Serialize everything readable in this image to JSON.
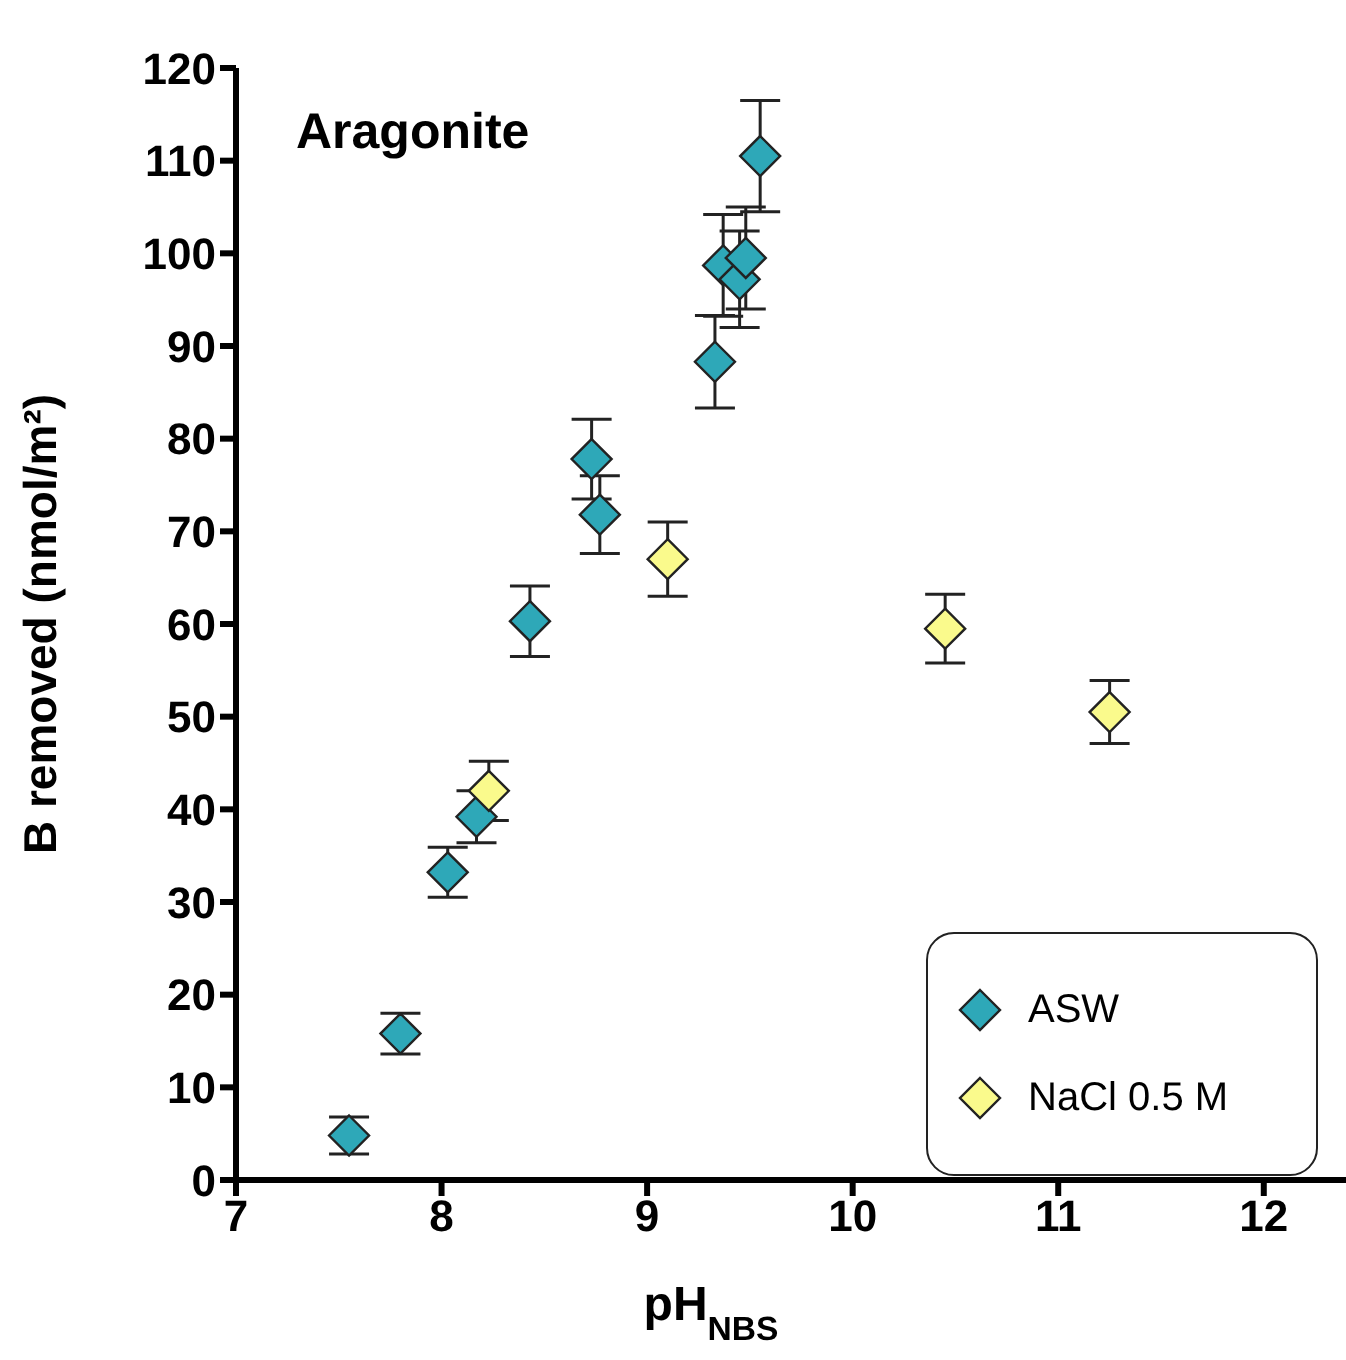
{
  "chart_data": {
    "type": "scatter",
    "title": "Aragonite",
    "xlabel": "pH$_{NBS}$",
    "ylabel": "B removed (nmol/m²)",
    "series": [
      {
        "name": "ASW",
        "color": "#2ea8b8",
        "x": [
          7.55,
          7.8,
          8.03,
          8.17,
          8.43,
          8.73,
          8.77,
          9.33,
          9.37,
          9.45,
          9.48,
          9.55
        ],
        "values": [
          4.8,
          15.8,
          33.2,
          39.2,
          60.3,
          77.8,
          71.8,
          88.3,
          98.7,
          97.2,
          99.5,
          110.5
        ],
        "errors": [
          2,
          2.2,
          2.7,
          2.8,
          3.8,
          4.3,
          4.2,
          5,
          5.5,
          5.2,
          5.5,
          6
        ]
      },
      {
        "name": "NaCl 0.5 M",
        "color": "#fafa8c",
        "x": [
          8.23,
          9.1,
          10.45,
          11.25
        ],
        "values": [
          42,
          67,
          59.5,
          50.5
        ],
        "errors": [
          3.2,
          4,
          3.7,
          3.4
        ]
      }
    ],
    "xlim": [
      7,
      12.4
    ],
    "xticks": [
      7,
      8,
      9,
      10,
      11,
      12
    ],
    "ylim": [
      0,
      120
    ],
    "yticks": [
      0,
      10,
      20,
      30,
      40,
      50,
      60,
      70,
      80,
      90,
      100,
      110,
      120
    ],
    "grid": false,
    "legend": "bottom right",
    "marker": "diamond"
  }
}
